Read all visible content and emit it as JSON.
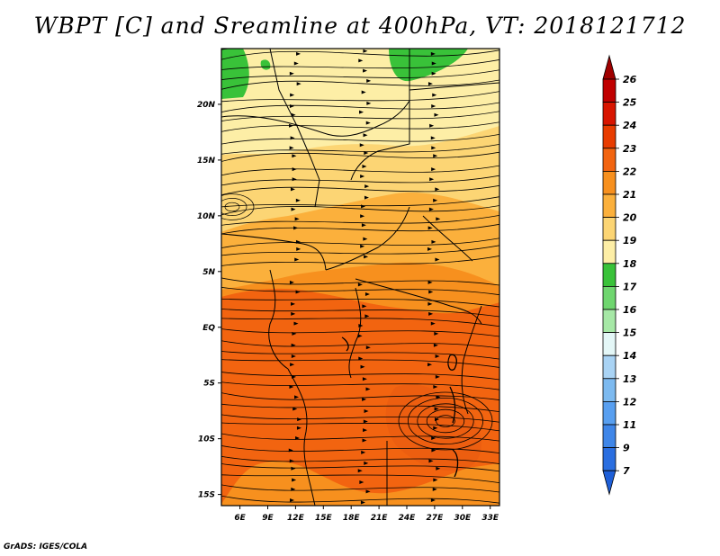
{
  "title": "WBPT [C] and Sreamline at 400hPa, VT: 2018121712",
  "footer": "GrADS: IGES/COLA",
  "map": {
    "lon_range": [
      4,
      34
    ],
    "lat_range": [
      -16,
      25
    ],
    "lat_ticks": [
      "20N",
      "15N",
      "10N",
      "5N",
      "EQ",
      "5S",
      "10S",
      "15S"
    ],
    "lon_ticks": [
      "6E",
      "9E",
      "12E",
      "15E",
      "18E",
      "21E",
      "24E",
      "27E",
      "30E",
      "33E"
    ]
  },
  "colorbar": {
    "labels": [
      "26",
      "25",
      "24",
      "23",
      "22",
      "21",
      "20",
      "19",
      "18",
      "17",
      "16",
      "15",
      "14",
      "13",
      "12",
      "11",
      "9",
      "7"
    ],
    "colors": [
      "#c00000",
      "#d81500",
      "#e83c00",
      "#f26410",
      "#f7901e",
      "#fbb03c",
      "#fcd574",
      "#fdeea6",
      "#39c239",
      "#6fd66f",
      "#a6e8a6",
      "#e4f7f7",
      "#a9d3f4",
      "#7dbaf0",
      "#589ff0",
      "#3f86e8",
      "#2a6ee0"
    ],
    "top_color": "#a00000",
    "bottom_color": "#1e5fd8"
  }
}
